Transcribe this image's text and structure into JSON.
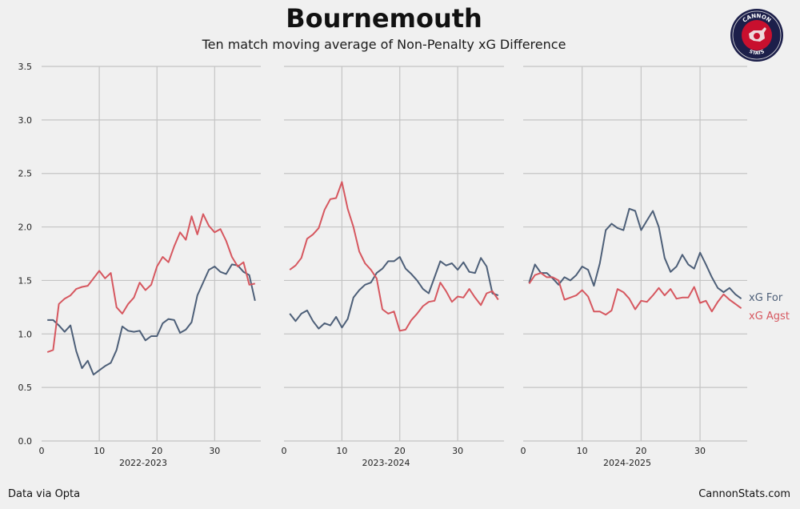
{
  "title": "Bournemouth",
  "subtitle": "Ten match moving average of Non-Penalty xG Difference",
  "footer": {
    "source": "Data via Opta",
    "site": "CannonStats.com"
  },
  "logo": {
    "top_text": "CANNON",
    "bottom_text": "STATS"
  },
  "colors": {
    "xg_for": "#4d5f78",
    "xg_agst": "#d6575f",
    "grid": "#c4c4c4",
    "background": "#f0f0f0"
  },
  "chart_data": {
    "type": "line",
    "ylim": [
      0,
      3.5
    ],
    "yticks": [
      "0.0",
      "0.5",
      "1.0",
      "1.5",
      "2.0",
      "2.5",
      "3.0",
      "3.5"
    ],
    "xlim": [
      0,
      38
    ],
    "xticks": [
      "0",
      "10",
      "20",
      "30"
    ],
    "grid": true,
    "legend": [
      "xG For",
      "xG Agst"
    ],
    "panels": [
      {
        "label": "2022-2023",
        "series": [
          {
            "name": "xG For",
            "values": [
              1.13,
              1.13,
              1.08,
              1.02,
              1.08,
              0.84,
              0.68,
              0.75,
              0.62,
              0.66,
              0.7,
              0.73,
              0.85,
              1.07,
              1.03,
              1.02,
              1.03,
              0.94,
              0.98,
              0.98,
              1.1,
              1.14,
              1.13,
              1.01,
              1.04,
              1.11,
              1.36,
              1.48,
              1.6,
              1.63,
              1.58,
              1.56,
              1.65,
              1.64,
              1.58,
              1.55,
              1.31
            ]
          },
          {
            "name": "xG Agst",
            "values": [
              0.83,
              0.85,
              1.28,
              1.33,
              1.36,
              1.42,
              1.44,
              1.45,
              1.52,
              1.59,
              1.52,
              1.57,
              1.25,
              1.19,
              1.28,
              1.34,
              1.48,
              1.41,
              1.46,
              1.63,
              1.72,
              1.67,
              1.82,
              1.95,
              1.88,
              2.1,
              1.93,
              2.12,
              2.01,
              1.95,
              1.98,
              1.87,
              1.72,
              1.63,
              1.67,
              1.46,
              1.47
            ]
          }
        ]
      },
      {
        "label": "2023-2024",
        "series": [
          {
            "name": "xG For",
            "values": [
              1.19,
              1.12,
              1.19,
              1.22,
              1.12,
              1.05,
              1.1,
              1.08,
              1.16,
              1.06,
              1.14,
              1.34,
              1.41,
              1.46,
              1.48,
              1.57,
              1.61,
              1.68,
              1.68,
              1.72,
              1.61,
              1.56,
              1.5,
              1.42,
              1.38,
              1.53,
              1.68,
              1.64,
              1.66,
              1.6,
              1.67,
              1.58,
              1.57,
              1.71,
              1.63,
              1.38,
              1.36
            ]
          },
          {
            "name": "xG Agst",
            "values": [
              1.6,
              1.64,
              1.71,
              1.89,
              1.93,
              1.99,
              2.16,
              2.26,
              2.27,
              2.42,
              2.17,
              2.0,
              1.77,
              1.66,
              1.6,
              1.52,
              1.23,
              1.19,
              1.21,
              1.03,
              1.04,
              1.13,
              1.19,
              1.26,
              1.3,
              1.31,
              1.48,
              1.4,
              1.3,
              1.35,
              1.34,
              1.42,
              1.34,
              1.27,
              1.38,
              1.4,
              1.32
            ]
          }
        ]
      },
      {
        "label": "2024-2025",
        "series": [
          {
            "name": "xG For",
            "values": [
              1.48,
              1.65,
              1.57,
              1.57,
              1.52,
              1.46,
              1.53,
              1.5,
              1.55,
              1.63,
              1.6,
              1.45,
              1.66,
              1.97,
              2.03,
              1.99,
              1.97,
              2.17,
              2.15,
              1.97,
              2.06,
              2.15,
              2.0,
              1.71,
              1.58,
              1.63,
              1.74,
              1.65,
              1.61,
              1.76,
              1.65,
              1.53,
              1.43,
              1.39,
              1.43,
              1.37,
              1.33
            ]
          },
          {
            "name": "xG Agst",
            "values": [
              1.47,
              1.55,
              1.57,
              1.53,
              1.53,
              1.5,
              1.32,
              1.34,
              1.36,
              1.41,
              1.35,
              1.21,
              1.21,
              1.18,
              1.22,
              1.42,
              1.39,
              1.33,
              1.23,
              1.31,
              1.3,
              1.36,
              1.43,
              1.36,
              1.42,
              1.33,
              1.34,
              1.34,
              1.44,
              1.29,
              1.31,
              1.21,
              1.3,
              1.37,
              1.32,
              1.28,
              1.24
            ]
          }
        ]
      }
    ]
  }
}
